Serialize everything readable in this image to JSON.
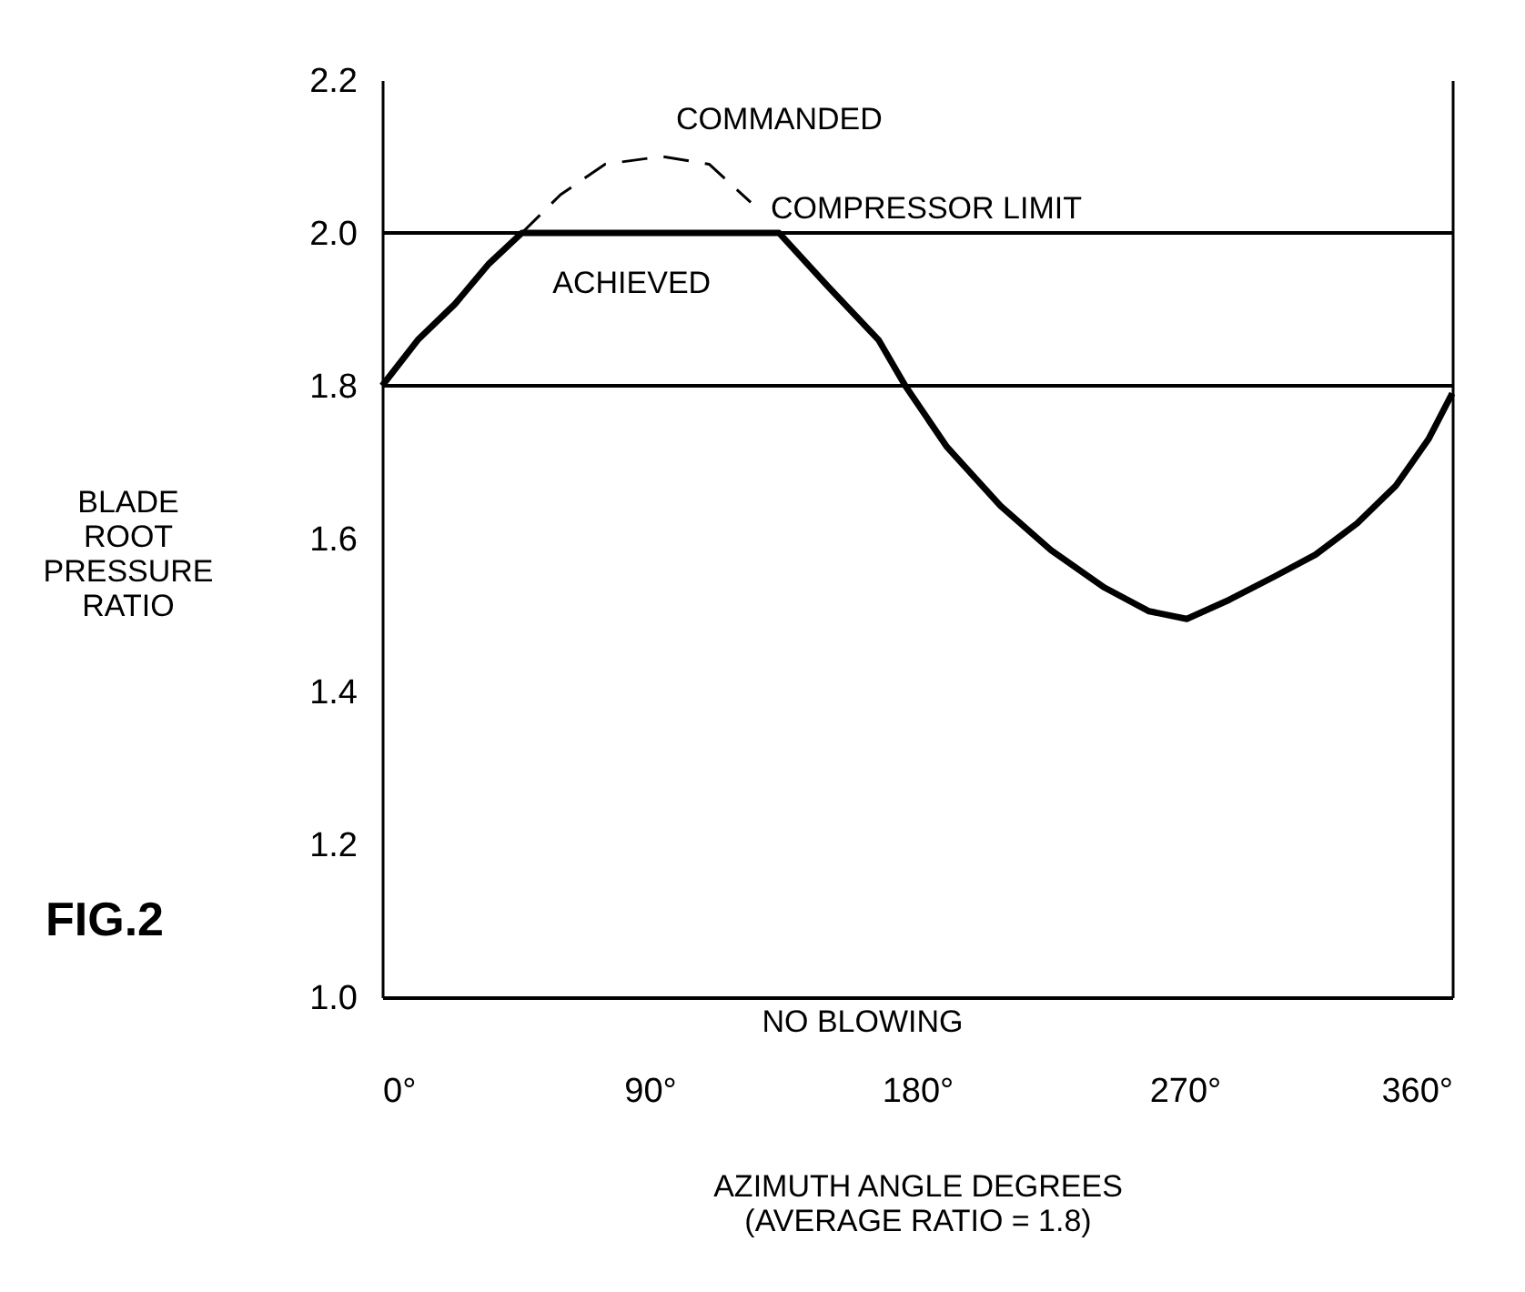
{
  "chart_data": {
    "type": "line",
    "xlabel": "AZIMUTH ANGLE  DEGREES\n(AVERAGE RATIO = 1.8)",
    "ylabel": "BLADE\nROOT\nPRESSURE\nRATIO",
    "series": [
      {
        "color": "#000000",
        "line_style": "solid",
        "x": [
          0,
          12,
          24.5,
          36,
          47,
          90,
          133.5,
          150,
          167,
          176,
          190,
          208,
          225,
          243,
          258,
          270.7,
          285,
          300,
          314,
          328,
          341,
          352,
          360
        ],
        "values": [
          1.8,
          1.86,
          1.907,
          1.96,
          2.0,
          2.0,
          2.0,
          1.93,
          1.86,
          1.8,
          1.72,
          1.643,
          1.585,
          1.536,
          1.505,
          1.495,
          1.52,
          1.55,
          1.579,
          1.62,
          1.669,
          1.73,
          1.79
        ]
      },
      {
        "color": "#000000",
        "line_style": "dashed",
        "x": [
          47,
          60,
          75,
          94,
          110,
          124
        ],
        "values": [
          2.0,
          2.05,
          2.09,
          2.1,
          2.09,
          2.04
        ]
      }
    ],
    "xlim": [
      0,
      360
    ],
    "xticks": [
      {
        "value": 0,
        "label": "0°"
      },
      {
        "value": 90,
        "label": "90°"
      },
      {
        "value": 180,
        "label": "180°"
      },
      {
        "value": 270,
        "label": "270°"
      },
      {
        "value": 360,
        "label": "360°"
      }
    ],
    "ylim": [
      1.0,
      2.2
    ],
    "yticks": [
      {
        "value": 1.0,
        "label": "1.0"
      },
      {
        "value": 1.2,
        "label": "1.2"
      },
      {
        "value": 1.4,
        "label": "1.4"
      },
      {
        "value": 1.6,
        "label": "1.6"
      },
      {
        "value": 1.8,
        "label": "1.8"
      },
      {
        "value": 2.0,
        "label": "2.0"
      },
      {
        "value": 2.2,
        "label": "2.2"
      }
    ],
    "ref_lines": [
      {
        "axis": "y",
        "value": 2.0,
        "label": "COMPRESSOR LIMIT",
        "color": "#000000"
      },
      {
        "axis": "y",
        "value": 1.8,
        "color": "#000000"
      }
    ],
    "annotations": [
      {
        "text": "COMMANDED",
        "x": 94,
        "y": 2.1
      },
      {
        "text": "ACHIEVED",
        "x": 50,
        "y": 2.0
      },
      "NO BLOWING",
      "FIG.2"
    ],
    "grid": false,
    "marker": "none"
  }
}
